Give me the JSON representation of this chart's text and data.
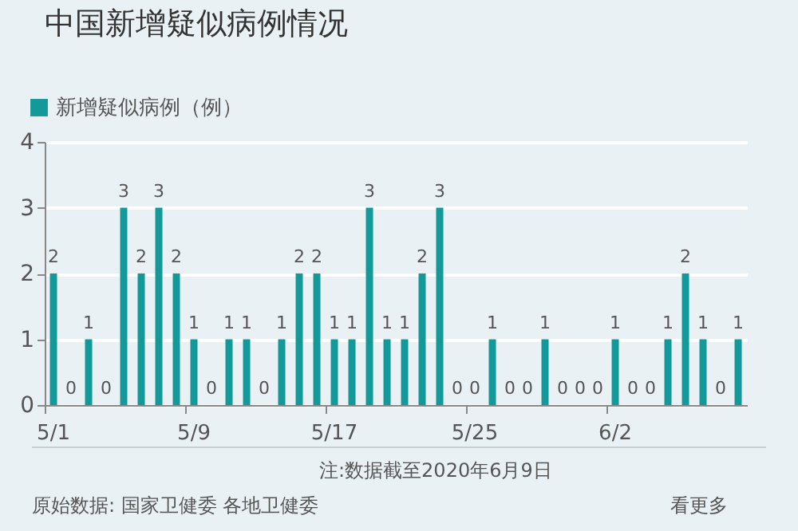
{
  "chart_data": {
    "type": "bar",
    "title": "中国新增疑似病例情况",
    "categories": [
      "5/1",
      null,
      null,
      null,
      null,
      null,
      null,
      null,
      "5/9",
      null,
      null,
      null,
      null,
      null,
      null,
      null,
      "5/17",
      null,
      null,
      null,
      null,
      null,
      null,
      null,
      "5/25",
      null,
      null,
      null,
      null,
      null,
      null,
      null,
      "6/2",
      null,
      null,
      null,
      null,
      null,
      null,
      null
    ],
    "series": [
      {
        "name": "新增疑似病例（例）",
        "color": "#13999a",
        "values": [
          2,
          0,
          1,
          0,
          3,
          2,
          3,
          2,
          1,
          0,
          1,
          1,
          0,
          1,
          2,
          2,
          1,
          1,
          3,
          1,
          1,
          2,
          3,
          0,
          0,
          1,
          0,
          0,
          1,
          0,
          0,
          0,
          1,
          0,
          0,
          1,
          2,
          1,
          0,
          1
        ]
      }
    ],
    "ylim": [
      0,
      4
    ],
    "yticks": [
      0,
      1,
      2,
      3,
      4
    ],
    "grid": "y",
    "legend": "top left",
    "data_labels": true,
    "annotations": [
      "注:数据截至2020年6月9日",
      "原始数据: 国家卫健委 各地卫健委",
      "看更多"
    ]
  }
}
